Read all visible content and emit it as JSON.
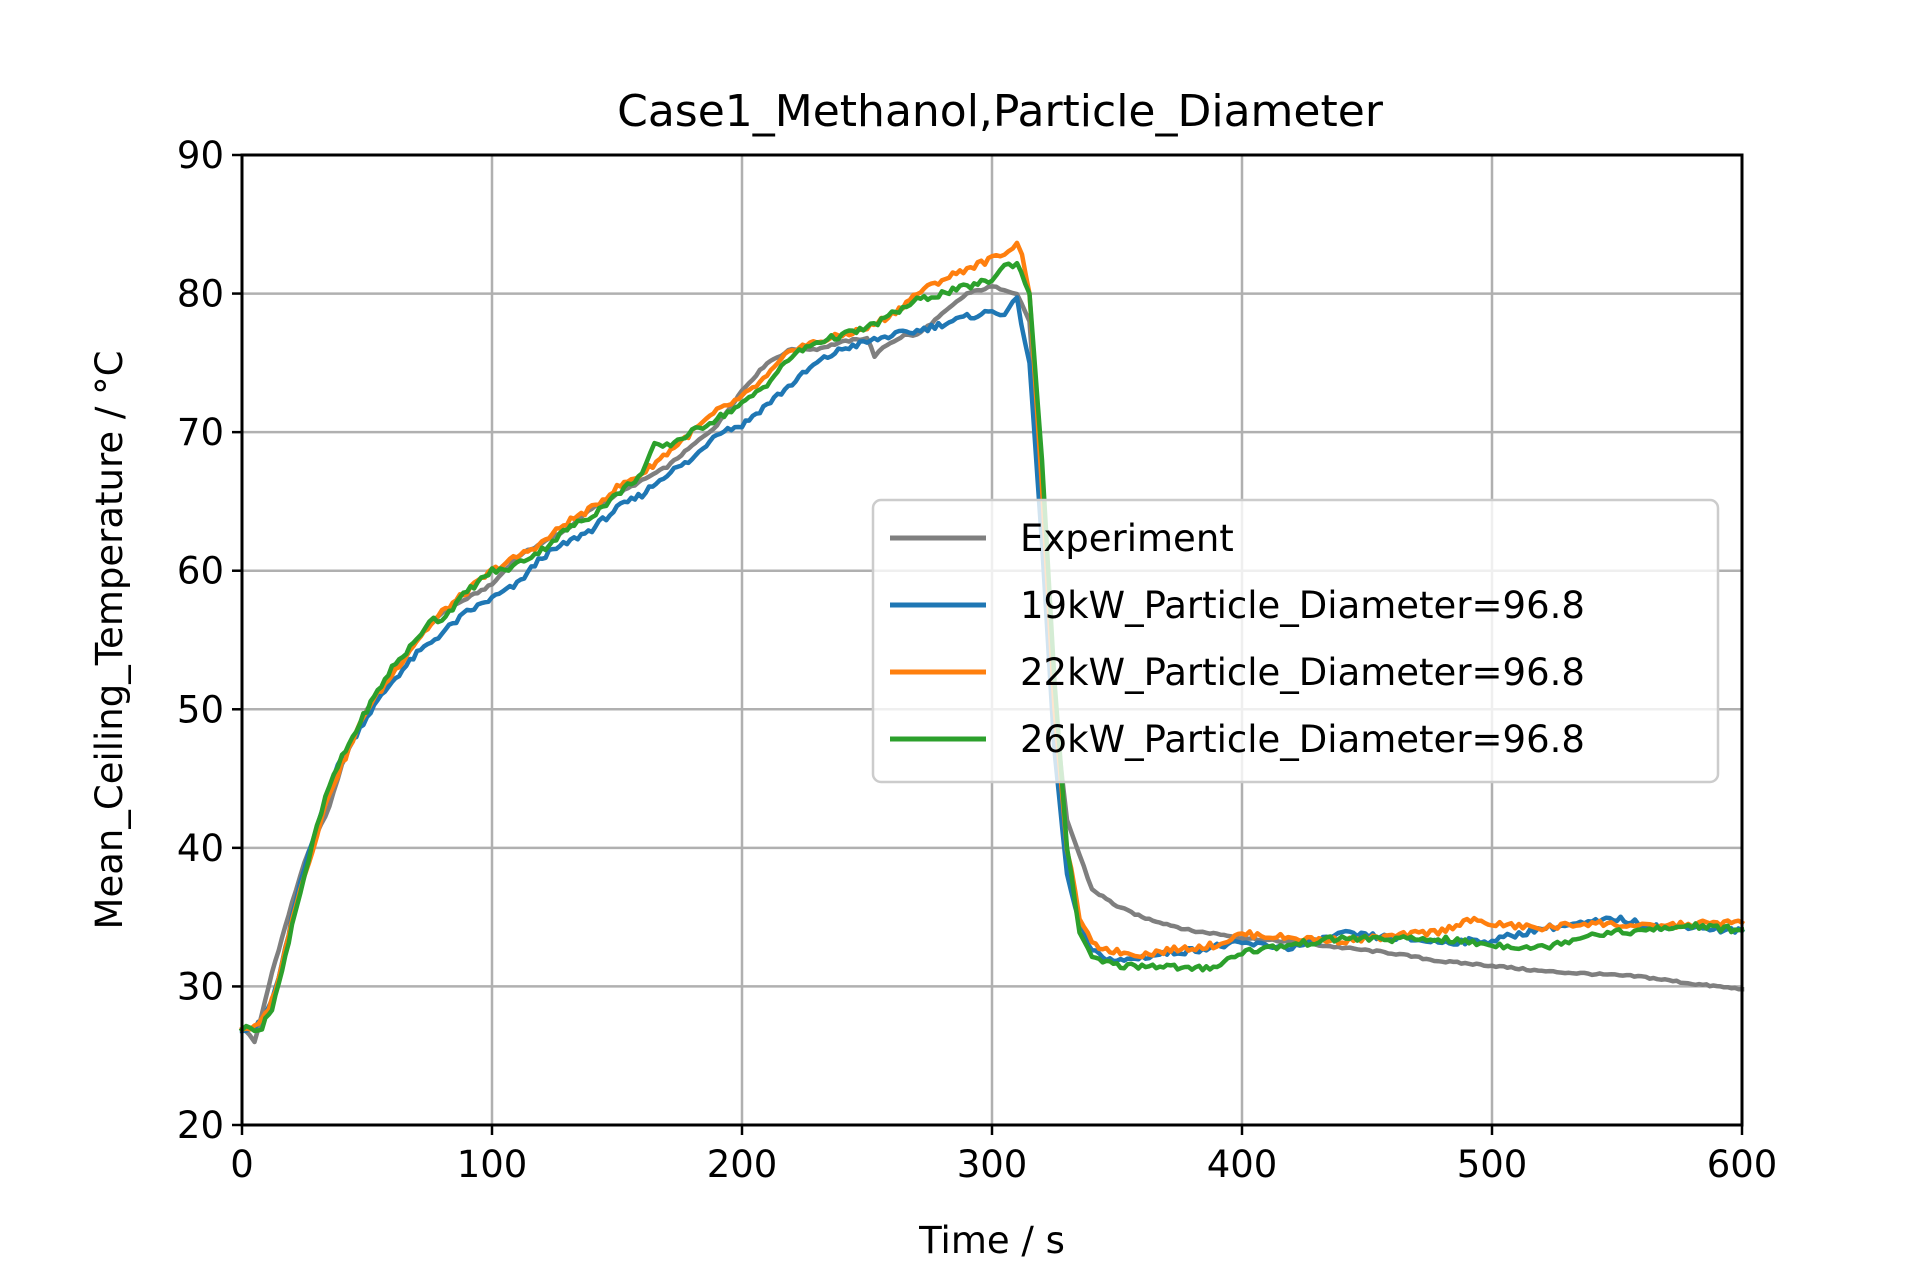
{
  "chart_data": {
    "type": "line",
    "title": "Case1_Methanol,Particle_Diameter",
    "xlabel": "Time / s",
    "ylabel": "Mean_Ceiling_Temperature / °C",
    "xlim": [
      0,
      600
    ],
    "ylim": [
      20,
      90
    ],
    "xticks": [
      0,
      100,
      200,
      300,
      400,
      500,
      600
    ],
    "yticks": [
      20,
      30,
      40,
      50,
      60,
      70,
      80,
      90
    ],
    "xtick_labels": [
      "0",
      "100",
      "200",
      "300",
      "400",
      "500",
      "600"
    ],
    "ytick_labels": [
      "20",
      "30",
      "40",
      "50",
      "60",
      "70",
      "80",
      "90"
    ],
    "grid": true,
    "legend_position": "center-right",
    "series": [
      {
        "name": "Experiment",
        "color": "#7f7f7f",
        "x": [
          0,
          3,
          5,
          8,
          12,
          16,
          20,
          25,
          30,
          35,
          40,
          50,
          60,
          70,
          80,
          90,
          100,
          110,
          120,
          130,
          140,
          150,
          160,
          170,
          180,
          190,
          200,
          210,
          220,
          230,
          240,
          250,
          253,
          258,
          265,
          270,
          280,
          290,
          300,
          305,
          310,
          315,
          320,
          325,
          330,
          335,
          340,
          350,
          360,
          370,
          380,
          390,
          400,
          420,
          440,
          460,
          480,
          500,
          520,
          540,
          560,
          580,
          590,
          600
        ],
        "y": [
          27,
          26.5,
          26,
          28,
          31,
          33.5,
          36,
          39,
          41,
          43,
          46,
          50,
          52.5,
          55,
          57,
          58,
          59,
          61,
          62,
          63,
          64.5,
          65.5,
          66.5,
          67.5,
          69,
          70.5,
          73,
          75,
          76,
          76,
          76.5,
          76.8,
          75.5,
          76.3,
          77,
          77,
          78.5,
          80,
          80.5,
          80.3,
          80,
          78,
          65,
          50,
          42,
          39.5,
          37,
          35.8,
          35,
          34.5,
          34,
          33.8,
          33.5,
          33.2,
          32.8,
          32.4,
          31.8,
          31.5,
          31.1,
          30.9,
          30.7,
          30.2,
          30,
          29.8
        ]
      },
      {
        "name": "19kW_Particle_Diameter=96.8",
        "color": "#1f77b4",
        "x": [
          0,
          5,
          8,
          12,
          16,
          20,
          25,
          30,
          35,
          40,
          50,
          60,
          70,
          80,
          90,
          100,
          110,
          120,
          130,
          140,
          150,
          160,
          170,
          180,
          190,
          200,
          210,
          220,
          230,
          240,
          250,
          260,
          270,
          280,
          290,
          300,
          305,
          310,
          315,
          320,
          325,
          330,
          335,
          340,
          350,
          360,
          370,
          380,
          390,
          400,
          420,
          440,
          460,
          480,
          500,
          520,
          540,
          550,
          560,
          570,
          580,
          590,
          600
        ],
        "y": [
          27,
          27,
          27.5,
          29,
          31.5,
          35,
          38.5,
          41.5,
          44.5,
          46.5,
          49.5,
          52,
          54,
          55.5,
          57,
          58,
          59,
          61,
          62,
          63,
          64.5,
          65.5,
          67,
          68,
          70,
          70.5,
          72,
          73.5,
          75,
          76,
          76.5,
          77,
          77.3,
          77.8,
          78.3,
          78.7,
          78.6,
          79.5,
          75,
          62,
          47,
          38,
          34.5,
          32.5,
          31.8,
          32.1,
          32.4,
          32.6,
          32.9,
          33.1,
          32.8,
          33.8,
          33.5,
          33.2,
          33.3,
          34.2,
          34.6,
          34.9,
          34.5,
          34.2,
          34.4,
          34.1,
          34.0
        ]
      },
      {
        "name": "22kW_Particle_Diameter=96.8",
        "color": "#ff7f0e",
        "x": [
          0,
          5,
          8,
          12,
          16,
          20,
          25,
          30,
          35,
          40,
          50,
          60,
          70,
          80,
          90,
          100,
          110,
          120,
          130,
          140,
          150,
          160,
          170,
          180,
          190,
          200,
          210,
          220,
          230,
          240,
          250,
          260,
          270,
          280,
          290,
          300,
          305,
          310,
          312,
          315,
          320,
          325,
          330,
          335,
          340,
          350,
          360,
          370,
          380,
          390,
          400,
          420,
          440,
          460,
          480,
          490,
          500,
          520,
          540,
          560,
          580,
          590,
          600
        ],
        "y": [
          27,
          27,
          27.5,
          29,
          31.5,
          35,
          38,
          41,
          44,
          46,
          50,
          52.5,
          55,
          57,
          58.5,
          60,
          61,
          62,
          63.5,
          64.5,
          66,
          67,
          68.5,
          70,
          71.5,
          72.5,
          74,
          76,
          76.5,
          77,
          77.5,
          78.5,
          80,
          81,
          81.8,
          82.5,
          83,
          83.5,
          83,
          80,
          66,
          50,
          40,
          35,
          33,
          32.5,
          32.3,
          32.6,
          32.8,
          33,
          33.8,
          33.5,
          33.3,
          33.6,
          34.0,
          34.8,
          34.5,
          34.2,
          34.6,
          34.3,
          34.5,
          34.6,
          34.6
        ]
      },
      {
        "name": "26kW_Particle_Diameter=96.8",
        "color": "#2ca02c",
        "x": [
          0,
          5,
          8,
          12,
          16,
          20,
          25,
          30,
          35,
          40,
          50,
          60,
          70,
          75,
          80,
          90,
          100,
          105,
          110,
          120,
          130,
          140,
          150,
          160,
          165,
          170,
          180,
          190,
          200,
          210,
          220,
          230,
          240,
          250,
          260,
          270,
          280,
          290,
          300,
          305,
          310,
          315,
          320,
          325,
          330,
          335,
          340,
          350,
          360,
          370,
          380,
          390,
          400,
          420,
          440,
          460,
          480,
          500,
          520,
          540,
          560,
          580,
          590,
          600
        ],
        "y": [
          27,
          27,
          27,
          28.5,
          31,
          34.5,
          38,
          41.5,
          44.5,
          46.5,
          50,
          53,
          55,
          56.5,
          56.5,
          58.5,
          60,
          60,
          60.5,
          61.5,
          63,
          64,
          65.5,
          67,
          69,
          69,
          70,
          71,
          72,
          73.5,
          75.5,
          76.5,
          77,
          77.5,
          78.5,
          79.5,
          80,
          80.5,
          81,
          82,
          82.2,
          80,
          68,
          52,
          40,
          34,
          32,
          31.5,
          31.5,
          31.5,
          31.2,
          31.5,
          32.5,
          33,
          33.5,
          33.4,
          33.4,
          33.0,
          32.8,
          33.8,
          34.0,
          34.4,
          34.2,
          34.1
        ]
      }
    ]
  }
}
